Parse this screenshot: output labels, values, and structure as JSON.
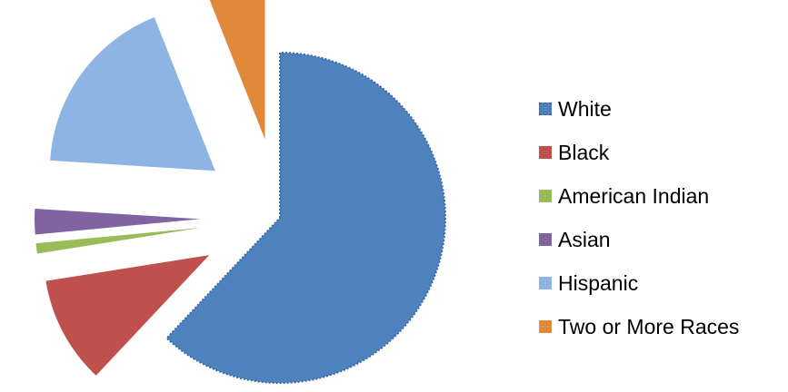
{
  "chart_data": {
    "type": "pie",
    "title": "",
    "slices": [
      {
        "label": "White",
        "value": 62.0,
        "color": "#4f81bd",
        "exploded": false
      },
      {
        "label": "Black",
        "value": 10.5,
        "color": "#c0504d",
        "exploded": true
      },
      {
        "label": "American Indian",
        "value": 1.0,
        "color": "#9bbb59",
        "exploded": true
      },
      {
        "label": "Asian",
        "value": 2.5,
        "color": "#8064a2",
        "exploded": true
      },
      {
        "label": "Hispanic",
        "value": 18.0,
        "color": "#8eb4e3",
        "exploded": true
      },
      {
        "label": "Two or More Races",
        "value": 6.0,
        "color": "#e0893a",
        "exploded": true
      }
    ],
    "legend_position": "right",
    "grid": false
  }
}
